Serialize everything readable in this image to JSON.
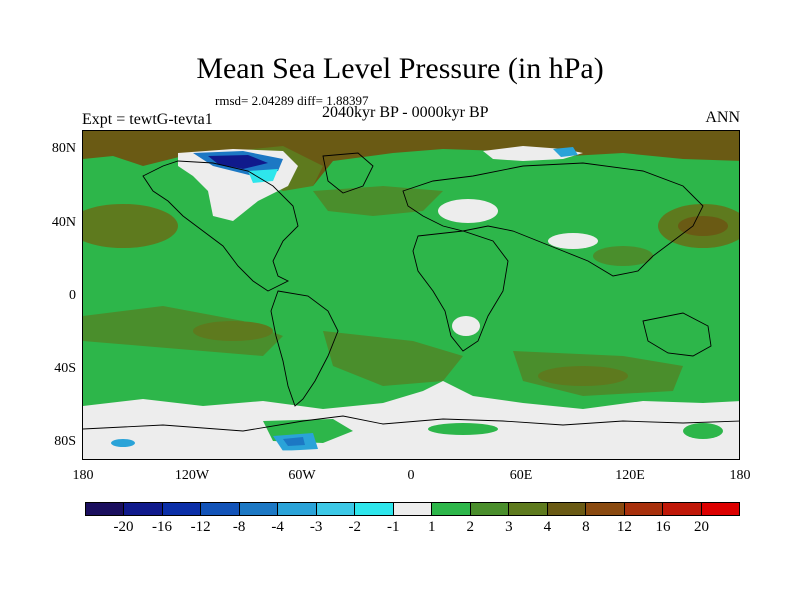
{
  "title": "Mean Sea Level Pressure (in hPa)",
  "stats": "rmsd= 2.04289 diff= 1.88397",
  "subtitle": "2040kyr BP - 0000kyr BP",
  "experiment": "Expt = tewtG-tevta1",
  "season": "ANN",
  "y_ticks": [
    "80N",
    "40N",
    "0",
    "40S",
    "80S"
  ],
  "x_ticks": [
    "180",
    "120W",
    "60W",
    "0",
    "60E",
    "120E",
    "180"
  ],
  "colorbar": {
    "labels": [
      "-20",
      "-16",
      "-12",
      "-8",
      "-4",
      "-3",
      "-2",
      "-1",
      "1",
      "2",
      "3",
      "4",
      "8",
      "12",
      "16",
      "20"
    ],
    "colors": [
      "#1a0e5e",
      "#101a8c",
      "#0b2fa8",
      "#1253b8",
      "#1c78c4",
      "#2aa3d8",
      "#3cc8e6",
      "#2ee6ec",
      "#ededed",
      "#2db64a",
      "#4a8e2c",
      "#5e7a1e",
      "#6a5a14",
      "#8a4a10",
      "#a8300c",
      "#c01808",
      "#dc0000"
    ]
  },
  "map_colors": {
    "green_light": "#2db64a",
    "green_dark": "#4a8e2c",
    "olive": "#5e7a1e",
    "brown": "#6a5a14",
    "white": "#ededed",
    "cyan": "#2aa3d8",
    "blue": "#1253b8"
  }
}
